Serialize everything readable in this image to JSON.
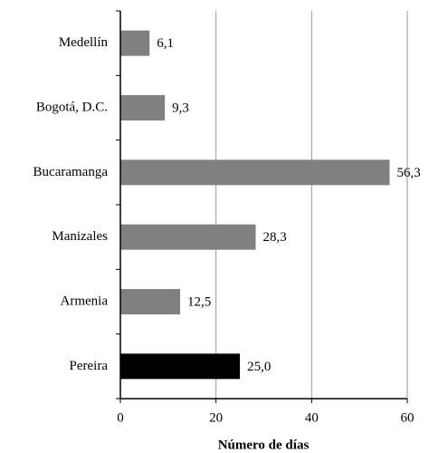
{
  "chart_data": {
    "type": "hbar",
    "categories": [
      "Medellín",
      "Bogotá, D.C.",
      "Bucaramanga",
      "Manizales",
      "Armenia",
      "Pereira"
    ],
    "values": [
      6.1,
      9.3,
      56.3,
      28.3,
      12.5,
      25.0
    ],
    "value_labels": [
      "6,1",
      "9,3",
      "56,3",
      "28,3",
      "12,5",
      "25,0"
    ],
    "colors": [
      "#808080",
      "#808080",
      "#808080",
      "#808080",
      "#808080",
      "#000000"
    ],
    "xlabel": "Número de días",
    "xlim": [
      0,
      60
    ],
    "xticks": [
      0,
      20,
      40,
      60
    ],
    "grid": true
  }
}
